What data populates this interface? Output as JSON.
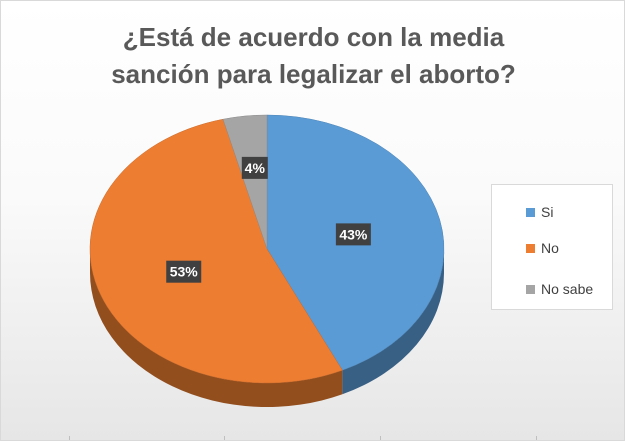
{
  "chart_data": {
    "type": "pie",
    "title_lines": [
      "¿Está de acuerdo con la media",
      "sanción para legalizar el aborto?"
    ],
    "categories": [
      "Si",
      "No",
      "No sabe"
    ],
    "values": [
      43,
      53,
      4
    ],
    "data_labels": [
      "43%",
      "53%",
      "4%"
    ],
    "colors": [
      "#5b9bd5",
      "#ed7d31",
      "#a5a5a5"
    ],
    "legend_position": "right",
    "three_d": true
  }
}
